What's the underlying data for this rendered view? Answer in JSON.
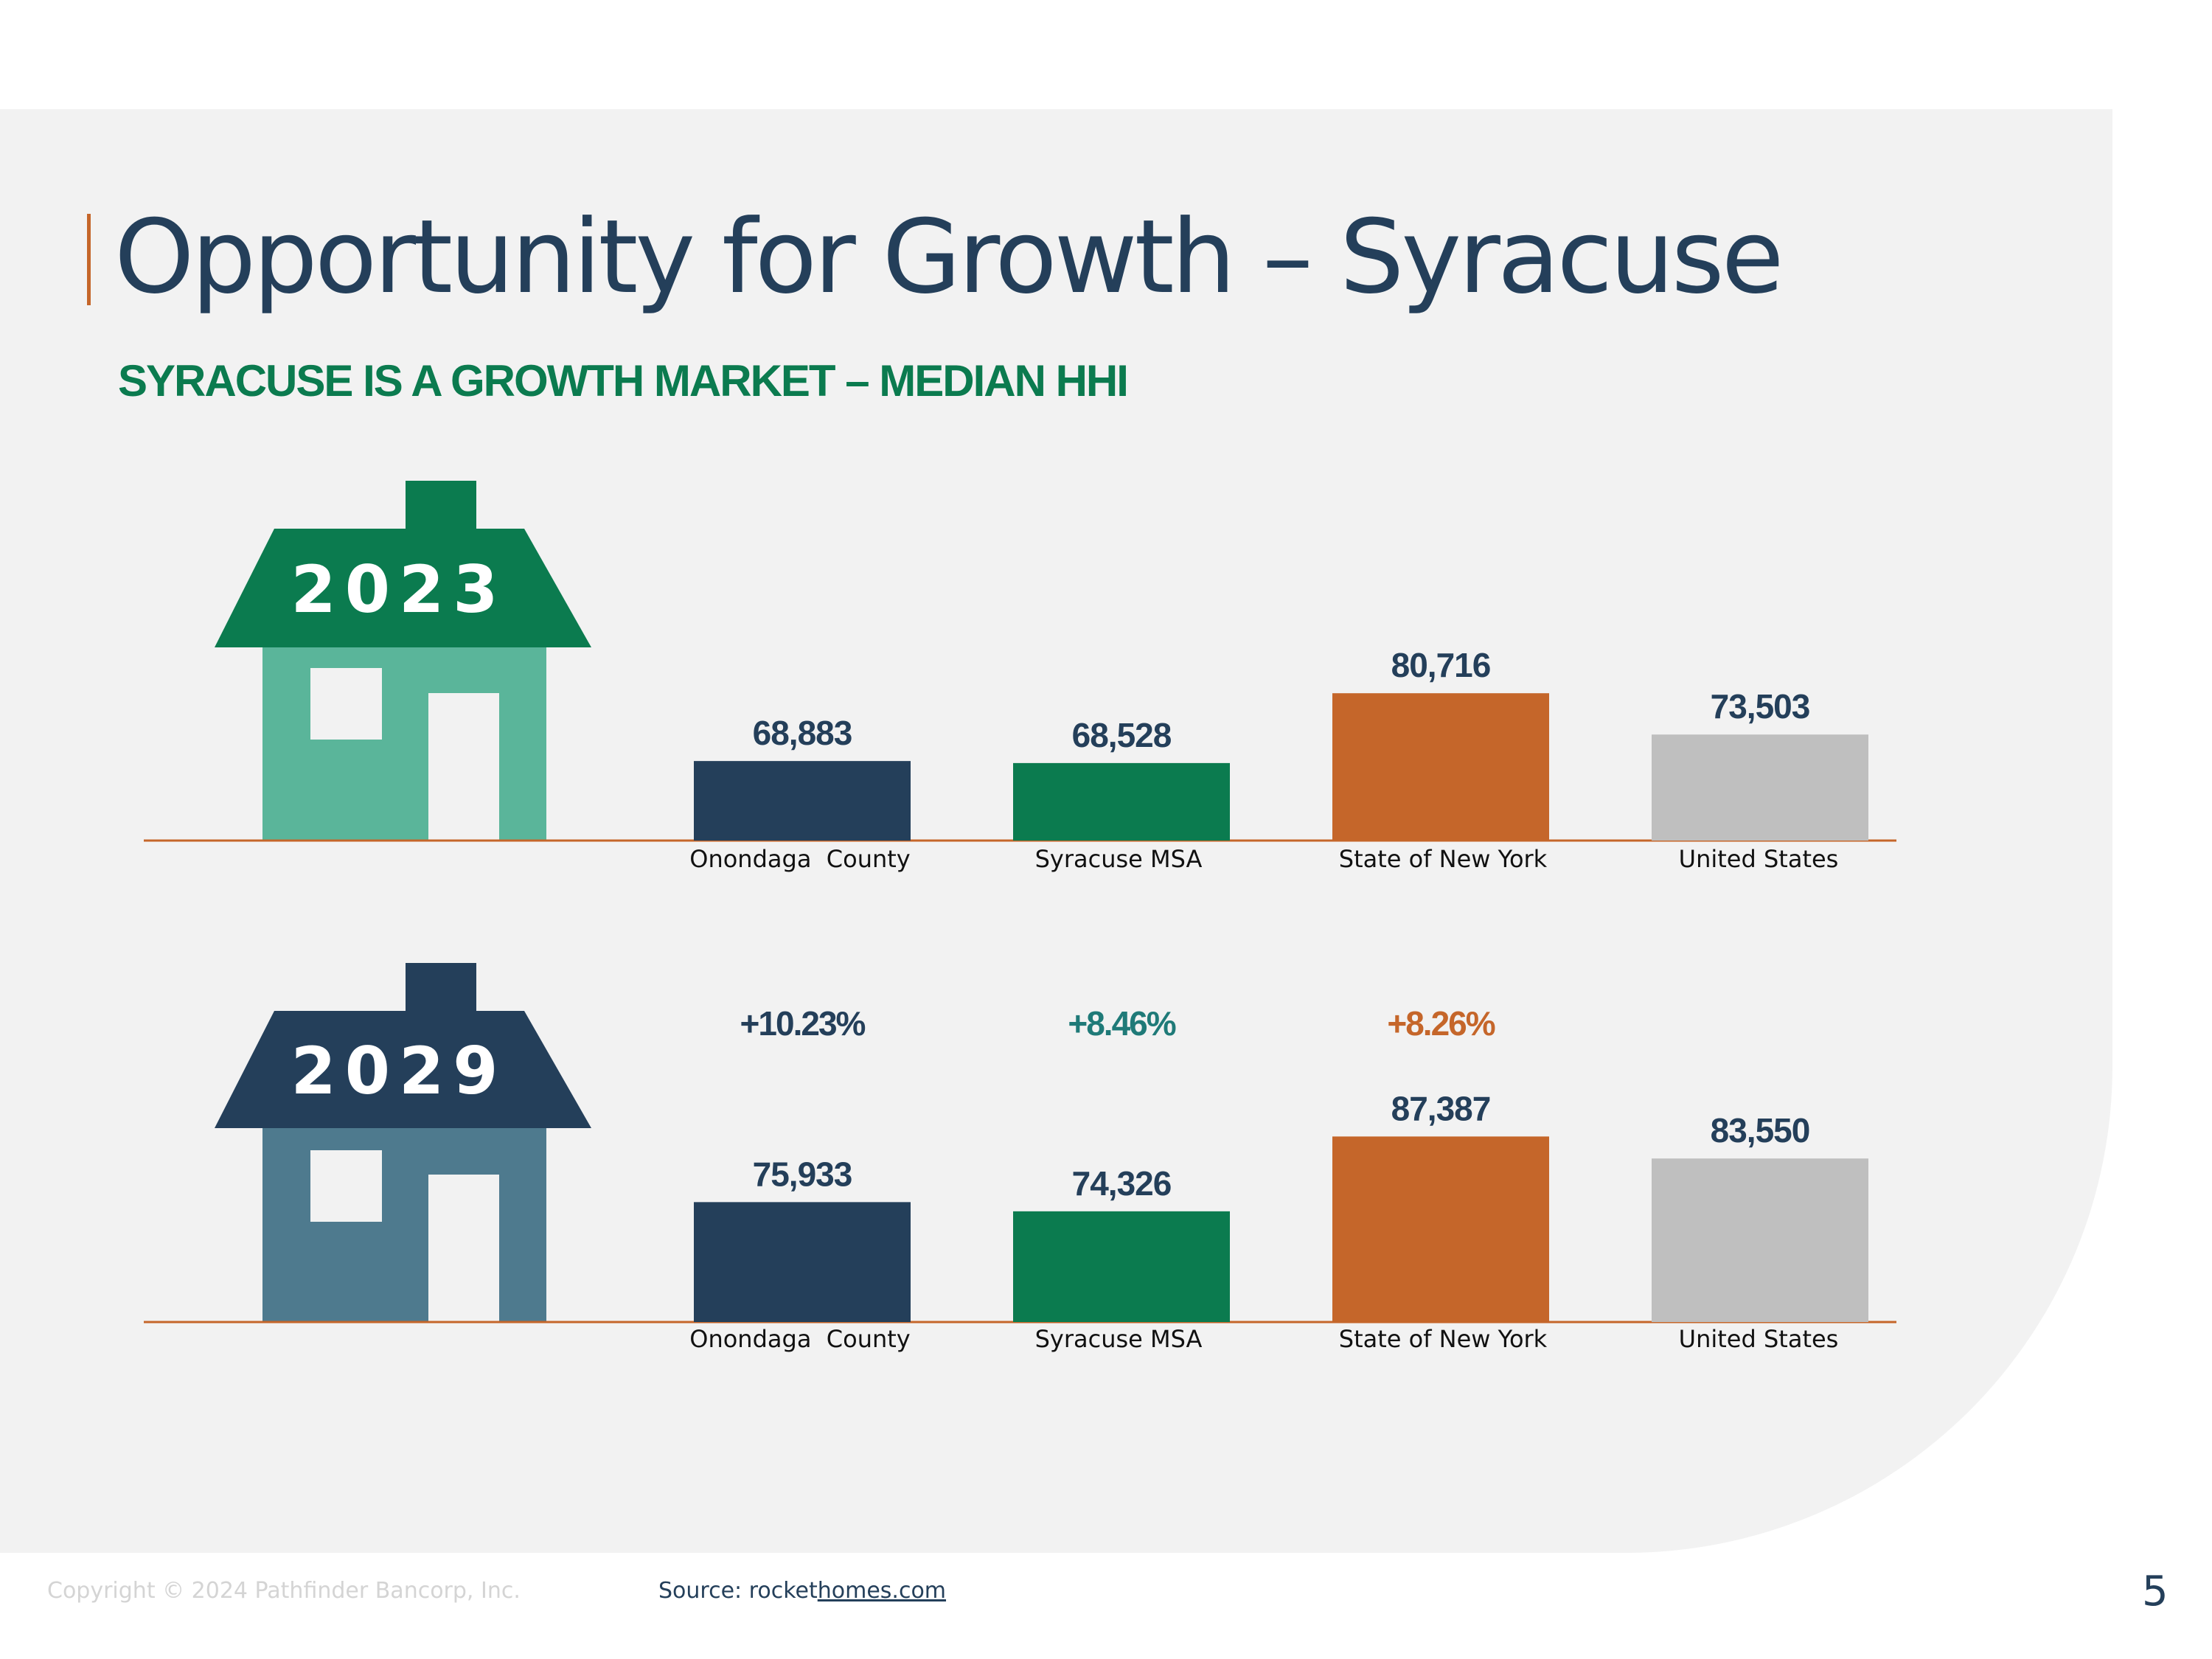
{
  "title": "Opportunity for Growth – Syracuse",
  "subtitle": "SYRACUSE IS A GROWTH MARKET – MEDIAN HHI",
  "footer": {
    "copyright": "Copyright © 2024 Pathfinder Bancorp, Inc.",
    "source_prefix": "Source: rocket",
    "source_link": "homes.com",
    "page_number": "5"
  },
  "colors": {
    "navy": "#243f5a",
    "green": "#0b7b4f",
    "orange": "#c5662a",
    "gray": "#bfbfbf",
    "teal": "#1f7a78",
    "house_2023_roof": "#0b7b4f",
    "house_2023_body": "#5ab59a",
    "house_2029_roof": "#243f5a",
    "house_2029_body": "#4e7a8e"
  },
  "chart_data": [
    {
      "type": "bar",
      "title": "2023",
      "categories": [
        "Onondaga  County",
        "Syracuse MSA",
        "State of New York",
        "United States"
      ],
      "values": [
        68883,
        68528,
        80716,
        73503
      ],
      "value_labels": [
        "68,883",
        "68,528",
        "80,716",
        "73,503"
      ],
      "bar_colors": [
        "#243f5a",
        "#0b7b4f",
        "#c5662a",
        "#bfbfbf"
      ],
      "ylim": [
        55000,
        90000
      ],
      "xlabel": "",
      "ylabel": ""
    },
    {
      "type": "bar",
      "title": "2029",
      "categories": [
        "Onondaga  County",
        "Syracuse MSA",
        "State of New York",
        "United States"
      ],
      "values": [
        75933,
        74326,
        87387,
        83550
      ],
      "value_labels": [
        "75,933",
        "74,326",
        "87,387",
        "83,550"
      ],
      "bar_colors": [
        "#243f5a",
        "#0b7b4f",
        "#c5662a",
        "#bfbfbf"
      ],
      "ylim": [
        55000,
        90000
      ],
      "growth_labels": [
        "+10.23%",
        "+8.46%",
        "+8.26%"
      ],
      "growth_colors": [
        "#243f5a",
        "#1f7a78",
        "#c5662a"
      ],
      "xlabel": "",
      "ylabel": ""
    }
  ]
}
